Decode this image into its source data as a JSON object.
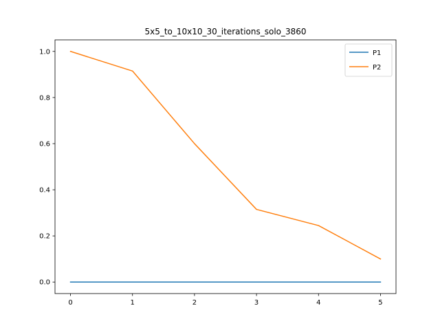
{
  "chart_data": {
    "type": "line",
    "title": "5x5_to_10x10_30_iterations_solo_3860",
    "xlabel": "",
    "ylabel": "",
    "x": [
      0,
      1,
      2,
      3,
      4,
      5
    ],
    "xlim": [
      -0.25,
      5.25
    ],
    "ylim": [
      -0.05,
      1.05
    ],
    "xticks": [
      0,
      1,
      2,
      3,
      4,
      5
    ],
    "yticks": [
      0.0,
      0.2,
      0.4,
      0.6,
      0.8,
      1.0
    ],
    "ytick_labels": [
      "0.0",
      "0.2",
      "0.4",
      "0.6",
      "0.8",
      "1.0"
    ],
    "grid": false,
    "legend_position": "top-right",
    "series": [
      {
        "name": "P1",
        "color": "#1f77b4",
        "values": [
          0.0,
          0.0,
          0.0,
          0.0,
          0.0,
          0.0
        ]
      },
      {
        "name": "P2",
        "color": "#ff7f0e",
        "values": [
          1.0,
          0.915,
          0.6,
          0.315,
          0.245,
          0.1
        ]
      }
    ]
  }
}
